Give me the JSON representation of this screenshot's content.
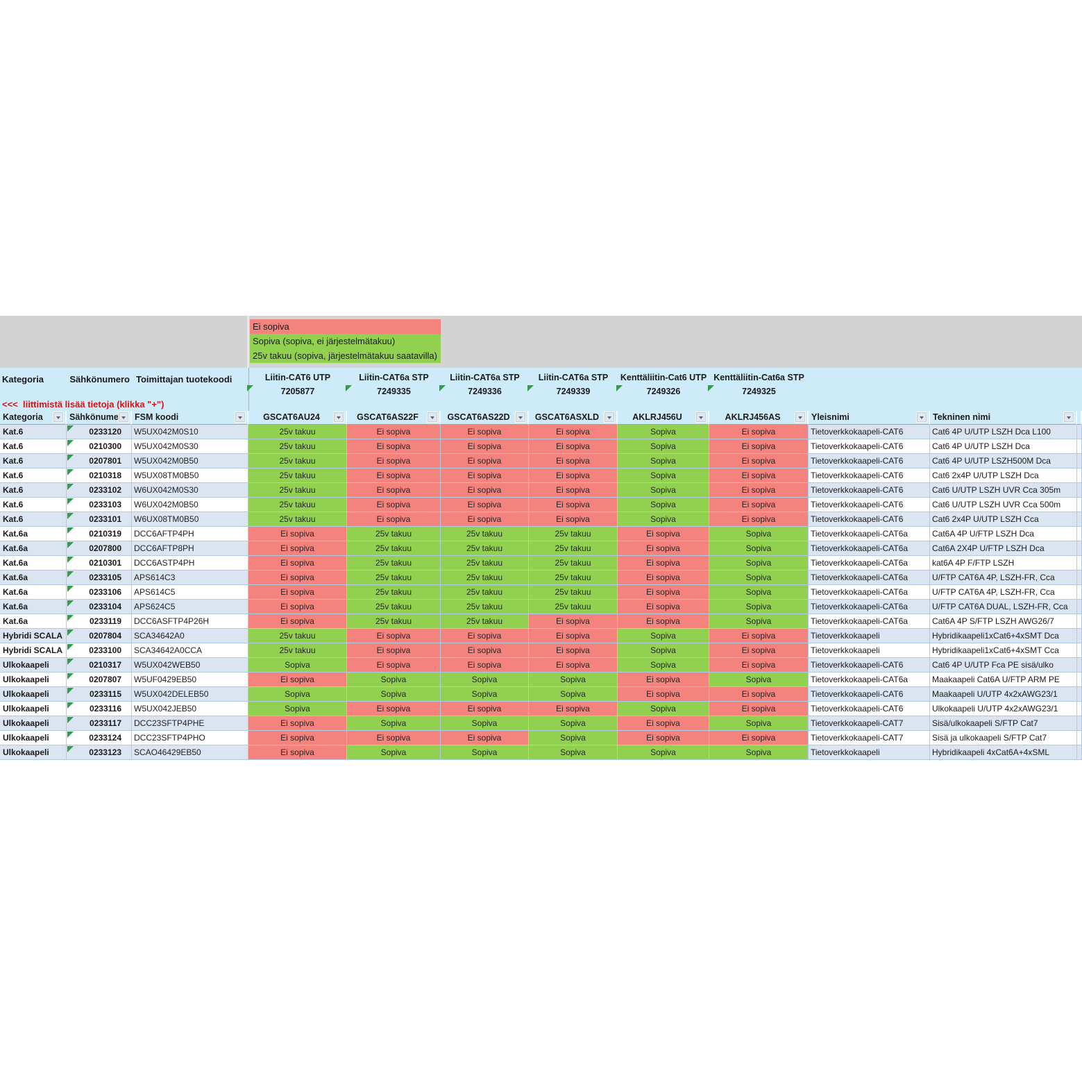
{
  "sheet": {
    "colors": {
      "status_bad": "#f4827d",
      "status_ok": "#92d050",
      "band_cyan": "#cdebf9",
      "stripe_blue": "#dbe5f1",
      "stripe_white": "#ffffff",
      "note_red": "#dd1111",
      "gray_band": "#d3d3d3"
    },
    "legend": [
      {
        "label": "Ei sopiva",
        "color": "#f4827d"
      },
      {
        "label": "Sopiva (sopiva, ei järjestelmätakuu)",
        "color": "#92d050"
      },
      {
        "label": "25v takuu (sopiva, järjestelmätakuu saatavilla)",
        "color": "#92d050"
      }
    ],
    "top_header": {
      "kategoria": "Kategoria",
      "sahkonumero": "Sähkönumero",
      "toimittajan": "Toimittajan tuotekoodi",
      "note": "<<<  liittimistä lisää tietoja (klikka \"+\")"
    },
    "products": [
      {
        "name": "Liitin-CAT6 UTP",
        "code": "7205877"
      },
      {
        "name": "Liitin-CAT6a STP",
        "code": "7249335"
      },
      {
        "name": "Liitin-CAT6a STP",
        "code": "7249336"
      },
      {
        "name": "Liitin-CAT6a STP",
        "code": "7249339"
      },
      {
        "name": "Kenttäliitin-Cat6 UTP",
        "code": "7249326"
      },
      {
        "name": "Kenttäliitin-Cat6a STP",
        "code": "7249325"
      }
    ],
    "filter_columns": [
      "Kategoria",
      "Sähkönume",
      "FSM koodi",
      "GSCAT6AU24",
      "GSCAT6AS22F",
      "GSCAT6AS22D",
      "GSCAT6ASXLD",
      "AKLRJ456U",
      "AKLRJ456AS",
      "Yleisnimi",
      "Tekninen nimi"
    ],
    "status_colors": {
      "Ei sopiva": "#f4827d",
      "Sopiva": "#92d050",
      "25v takuu": "#92d050"
    },
    "rows": [
      {
        "kategoria": "Kat.6",
        "sahkonumero": "0233120",
        "fsm": "W5UX042M0S10",
        "statuses": [
          "25v takuu",
          "Ei sopiva",
          "Ei sopiva",
          "Ei sopiva",
          "Sopiva",
          "Ei sopiva"
        ],
        "yleisnimi": "Tietoverkkokaapeli-CAT6",
        "tekninen": "Cat6 4P U/UTP LSZH Dca L100"
      },
      {
        "kategoria": "Kat.6",
        "sahkonumero": "0210300",
        "fsm": "W5UX042M0S30",
        "statuses": [
          "25v takuu",
          "Ei sopiva",
          "Ei sopiva",
          "Ei sopiva",
          "Sopiva",
          "Ei sopiva"
        ],
        "yleisnimi": "Tietoverkkokaapeli-CAT6",
        "tekninen": "Cat6 4P U/UTP LSZH Dca"
      },
      {
        "kategoria": "Kat.6",
        "sahkonumero": "0207801",
        "fsm": "W5UX042M0B50",
        "statuses": [
          "25v takuu",
          "Ei sopiva",
          "Ei sopiva",
          "Ei sopiva",
          "Sopiva",
          "Ei sopiva"
        ],
        "yleisnimi": "Tietoverkkokaapeli-CAT6",
        "tekninen": "Cat6 4P U/UTP LSZH500M Dca"
      },
      {
        "kategoria": "Kat.6",
        "sahkonumero": "0210318",
        "fsm": "W5UX08TM0B50",
        "statuses": [
          "25v takuu",
          "Ei sopiva",
          "Ei sopiva",
          "Ei sopiva",
          "Sopiva",
          "Ei sopiva"
        ],
        "yleisnimi": "Tietoverkkokaapeli-CAT6",
        "tekninen": "Cat6 2x4P U/UTP LSZH Dca"
      },
      {
        "kategoria": "Kat.6",
        "sahkonumero": "0233102",
        "fsm": "W6UX042M0S30",
        "statuses": [
          "25v takuu",
          "Ei sopiva",
          "Ei sopiva",
          "Ei sopiva",
          "Sopiva",
          "Ei sopiva"
        ],
        "yleisnimi": "Tietoverkkokaapeli-CAT6",
        "tekninen": "Cat6 U/UTP LSZH UVR Cca 305m"
      },
      {
        "kategoria": "Kat.6",
        "sahkonumero": "0233103",
        "fsm": "W6UX042M0B50",
        "statuses": [
          "25v takuu",
          "Ei sopiva",
          "Ei sopiva",
          "Ei sopiva",
          "Sopiva",
          "Ei sopiva"
        ],
        "yleisnimi": "Tietoverkkokaapeli-CAT6",
        "tekninen": "Cat6 U/UTP LSZH UVR Cca 500m"
      },
      {
        "kategoria": "Kat.6",
        "sahkonumero": "0233101",
        "fsm": "W6UX08TM0B50",
        "statuses": [
          "25v takuu",
          "Ei sopiva",
          "Ei sopiva",
          "Ei sopiva",
          "Sopiva",
          "Ei sopiva"
        ],
        "yleisnimi": "Tietoverkkokaapeli-CAT6",
        "tekninen": "Cat6 2x4P U/UTP LSZH Cca"
      },
      {
        "kategoria": "Kat.6a",
        "sahkonumero": "0210319",
        "fsm": "DCC6AFTP4PH",
        "statuses": [
          "Ei sopiva",
          "25v takuu",
          "25v takuu",
          "25v takuu",
          "Ei sopiva",
          "Sopiva"
        ],
        "yleisnimi": "Tietoverkkokaapeli-CAT6a",
        "tekninen": "Cat6A 4P U/FTP LSZH Dca"
      },
      {
        "kategoria": "Kat.6a",
        "sahkonumero": "0207800",
        "fsm": "DCC6AFTP8PH",
        "statuses": [
          "Ei sopiva",
          "25v takuu",
          "25v takuu",
          "25v takuu",
          "Ei sopiva",
          "Sopiva"
        ],
        "yleisnimi": "Tietoverkkokaapeli-CAT6a",
        "tekninen": "Cat6A 2X4P U/FTP LSZH Dca"
      },
      {
        "kategoria": "Kat.6a",
        "sahkonumero": "0210301",
        "fsm": "DCC6ASTP4PH",
        "statuses": [
          "Ei sopiva",
          "25v takuu",
          "25v takuu",
          "25v takuu",
          "Ei sopiva",
          "Sopiva"
        ],
        "yleisnimi": "Tietoverkkokaapeli-CAT6a",
        "tekninen": "kat6A 4P F/FTP LSZH"
      },
      {
        "kategoria": "Kat.6a",
        "sahkonumero": "0233105",
        "fsm": "APS614C3",
        "statuses": [
          "Ei sopiva",
          "25v takuu",
          "25v takuu",
          "25v takuu",
          "Ei sopiva",
          "Sopiva"
        ],
        "yleisnimi": "Tietoverkkokaapeli-CAT6a",
        "tekninen": "U/FTP CAT6A 4P, LSZH-FR, Cca"
      },
      {
        "kategoria": "Kat.6a",
        "sahkonumero": "0233106",
        "fsm": "APS614C5",
        "statuses": [
          "Ei sopiva",
          "25v takuu",
          "25v takuu",
          "25v takuu",
          "Ei sopiva",
          "Sopiva"
        ],
        "yleisnimi": "Tietoverkkokaapeli-CAT6a",
        "tekninen": "U/FTP CAT6A 4P, LSZH-FR, Cca"
      },
      {
        "kategoria": "Kat.6a",
        "sahkonumero": "0233104",
        "fsm": "APS624C5",
        "statuses": [
          "Ei sopiva",
          "25v takuu",
          "25v takuu",
          "25v takuu",
          "Ei sopiva",
          "Sopiva"
        ],
        "yleisnimi": "Tietoverkkokaapeli-CAT6a",
        "tekninen": "U/FTP CAT6A DUAL, LSZH-FR, Cca"
      },
      {
        "kategoria": "Kat.6a",
        "sahkonumero": "0233119",
        "fsm": "DCC6ASFTP4P26H",
        "statuses": [
          "Ei sopiva",
          "25v takuu",
          "25v takuu",
          "Ei sopiva",
          "Ei sopiva",
          "Sopiva"
        ],
        "yleisnimi": "Tietoverkkokaapeli-CAT6a",
        "tekninen": "Cat6A 4P S/FTP LSZH AWG26/7"
      },
      {
        "kategoria": "Hybridi SCALA",
        "sahkonumero": "0207804",
        "fsm": "SCA34642A0",
        "statuses": [
          "25v takuu",
          "Ei sopiva",
          "Ei sopiva",
          "Ei sopiva",
          "Sopiva",
          "Ei sopiva"
        ],
        "yleisnimi": "Tietoverkkokaapeli",
        "tekninen": "Hybridikaapeli1xCat6+4xSMT Dca"
      },
      {
        "kategoria": "Hybridi SCALA",
        "sahkonumero": "0233100",
        "fsm": "SCA34642A0CCA",
        "statuses": [
          "25v takuu",
          "Ei sopiva",
          "Ei sopiva",
          "Ei sopiva",
          "Sopiva",
          "Ei sopiva"
        ],
        "yleisnimi": "Tietoverkkokaapeli",
        "tekninen": "Hybridikaapeli1xCat6+4xSMT Cca"
      },
      {
        "kategoria": "Ulkokaapeli",
        "sahkonumero": "0210317",
        "fsm": "W5UX042WEB50",
        "statuses": [
          "Sopiva",
          "Ei sopiva",
          "Ei sopiva",
          "Ei sopiva",
          "Sopiva",
          "Ei sopiva"
        ],
        "yleisnimi": "Tietoverkkokaapeli-CAT6",
        "tekninen": "Cat6 4P U/UTP Fca PE sisä/ulko"
      },
      {
        "kategoria": "Ulkokaapeli",
        "sahkonumero": "0207807",
        "fsm": "W5UF0429EB50",
        "statuses": [
          "Ei sopiva",
          "Sopiva",
          "Sopiva",
          "Sopiva",
          "Ei sopiva",
          "Sopiva"
        ],
        "yleisnimi": "Tietoverkkokaapeli-CAT6a",
        "tekninen": "Maakaapeli Cat6A U/FTP ARM PE"
      },
      {
        "kategoria": "Ulkokaapeli",
        "sahkonumero": "0233115",
        "fsm": "W5UX042DELEB50",
        "statuses": [
          "Sopiva",
          "Sopiva",
          "Sopiva",
          "Sopiva",
          "Ei sopiva",
          "Ei sopiva"
        ],
        "yleisnimi": "Tietoverkkokaapeli-CAT6",
        "tekninen": "Maakaapeli U/UTP 4x2xAWG23/1"
      },
      {
        "kategoria": "Ulkokaapeli",
        "sahkonumero": "0233116",
        "fsm": "W5UX042JEB50",
        "statuses": [
          "Sopiva",
          "Ei sopiva",
          "Ei sopiva",
          "Ei sopiva",
          "Sopiva",
          "Ei sopiva"
        ],
        "yleisnimi": "Tietoverkkokaapeli-CAT6",
        "tekninen": "Ulkokaapeli U/UTP 4x2xAWG23/1"
      },
      {
        "kategoria": "Ulkokaapeli",
        "sahkonumero": "0233117",
        "fsm": "DCC23SFTP4PHE",
        "statuses": [
          "Ei sopiva",
          "Sopiva",
          "Sopiva",
          "Sopiva",
          "Ei sopiva",
          "Sopiva"
        ],
        "yleisnimi": "Tietoverkkokaapeli-CAT7",
        "tekninen": "Sisä/ulkokaapeli S/FTP Cat7"
      },
      {
        "kategoria": "Ulkokaapeli",
        "sahkonumero": "0233124",
        "fsm": "DCC23SFTP4PHO",
        "statuses": [
          "Ei sopiva",
          "Ei sopiva",
          "Ei sopiva",
          "Sopiva",
          "Ei sopiva",
          "Ei sopiva"
        ],
        "yleisnimi": "Tietoverkkokaapeli-CAT7",
        "tekninen": "Sisä ja ulkokaapeli S/FTP Cat7"
      },
      {
        "kategoria": "Ulkokaapeli",
        "sahkonumero": "0233123",
        "fsm": "SCAO46429EB50",
        "statuses": [
          "Ei sopiva",
          "Sopiva",
          "Sopiva",
          "Sopiva",
          "Sopiva",
          "Sopiva"
        ],
        "yleisnimi": "Tietoverkkokaapeli",
        "tekninen": "Hybridikaapeli 4xCat6A+4xSML"
      }
    ]
  }
}
